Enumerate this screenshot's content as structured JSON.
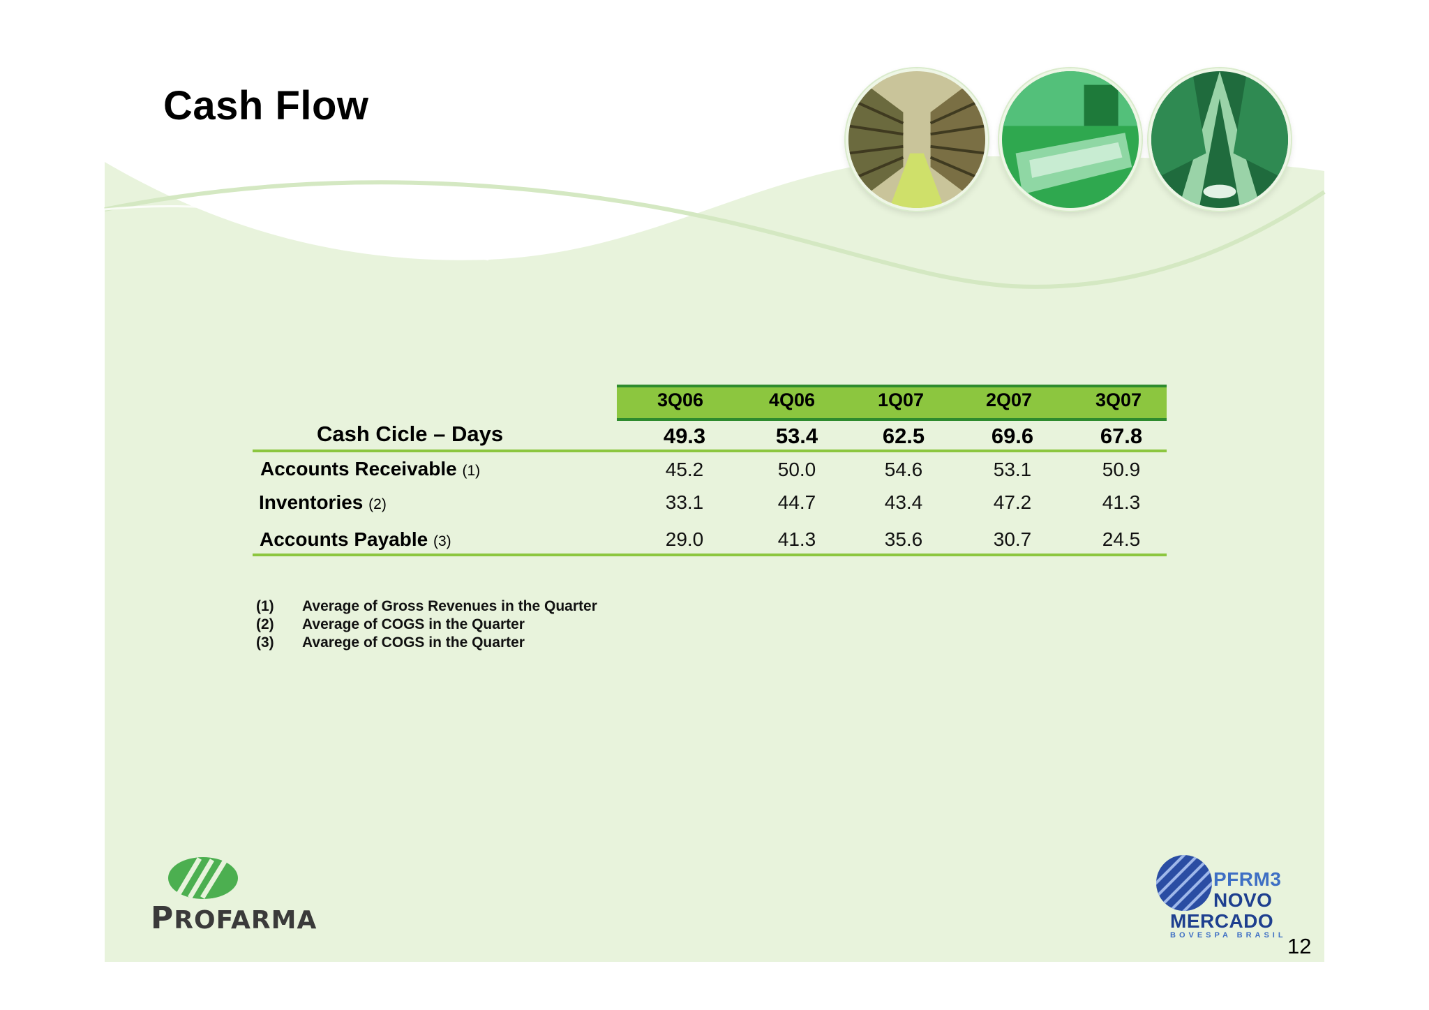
{
  "slide": {
    "title": "Cash Flow",
    "page_number": "12"
  },
  "table": {
    "columns": [
      "3Q06",
      "4Q06",
      "1Q07",
      "2Q07",
      "3Q07"
    ],
    "summary": {
      "label": "Cash Cicle – Days",
      "values": [
        "49.3",
        "53.4",
        "62.5",
        "69.6",
        "67.8"
      ]
    },
    "rows": [
      {
        "label": "Accounts Receivable",
        "note": "(1)",
        "values": [
          "45.2",
          "50.0",
          "54.6",
          "53.1",
          "50.9"
        ]
      },
      {
        "label": "Inventories",
        "note": "(2)",
        "values": [
          "33.1",
          "44.7",
          "43.4",
          "47.2",
          "41.3"
        ]
      },
      {
        "label": "Accounts Payable",
        "note": "(3)",
        "values": [
          "29.0",
          "41.3",
          "35.6",
          "30.7",
          "24.5"
        ]
      }
    ]
  },
  "footnotes": [
    {
      "num": "(1)",
      "text": "Average of Gross Revenues in the Quarter"
    },
    {
      "num": "(2)",
      "text": "Average of COGS in the Quarter"
    },
    {
      "num": "(3)",
      "text": "Avarege of COGS in the Quarter"
    }
  ],
  "logos": {
    "company": {
      "main": "P",
      "rest": "ROFARMA"
    },
    "exchange": {
      "ticker": "PFRM3",
      "line1": "NOVO",
      "line2": "MERCADO",
      "line3": "BOVESPA BRASIL"
    }
  },
  "colors": {
    "accent_green": "#8cc63f",
    "dark_green": "#2e8b2e",
    "background_green": "#e8f3dc"
  },
  "icons": [
    "warehouse-photo",
    "production-line-photo",
    "machinery-photo"
  ]
}
